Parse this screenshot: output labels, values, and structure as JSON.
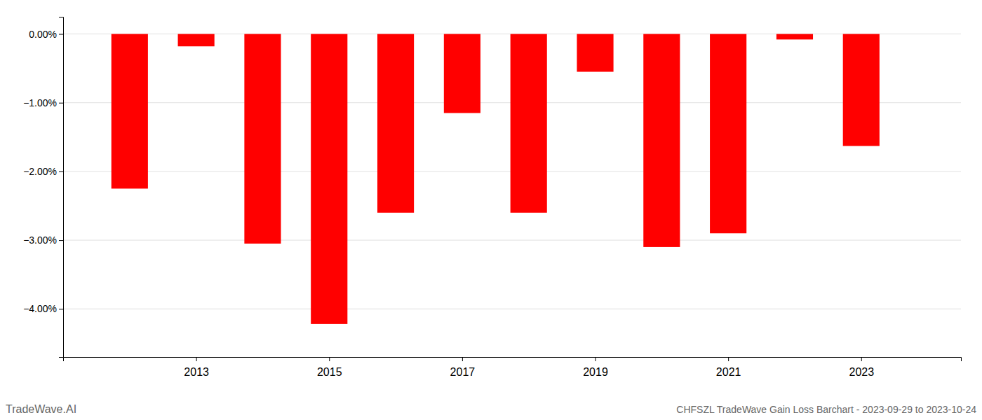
{
  "chart_data": {
    "type": "bar",
    "title": "CHFSZL TradeWave Gain Loss Barchart - 2023-09-29 to 2023-10-24",
    "annotations": [
      "TradeWave.AI"
    ],
    "x": [
      2012,
      2013,
      2014,
      2015,
      2016,
      2017,
      2018,
      2019,
      2020,
      2021,
      2022,
      2023
    ],
    "values": [
      -2.25,
      -0.18,
      -3.05,
      -4.22,
      -2.6,
      -1.15,
      -2.6,
      -0.55,
      -3.1,
      -2.9,
      -0.08,
      -1.63
    ],
    "color": "#ff0000",
    "xlim": [
      2011.0,
      2024.5
    ],
    "xticks": [
      2013,
      2015,
      2017,
      2019,
      2021,
      2023
    ],
    "ylim": [
      -4.7,
      0.25
    ],
    "yticks": [
      {
        "value": 0.0,
        "label": "0.00%"
      },
      {
        "value": -1.0,
        "label": "−1.00%"
      },
      {
        "value": -2.0,
        "label": "−2.00%"
      },
      {
        "value": -3.0,
        "label": "−3.00%"
      },
      {
        "value": -4.0,
        "label": "−4.00%"
      }
    ],
    "grid": true
  }
}
